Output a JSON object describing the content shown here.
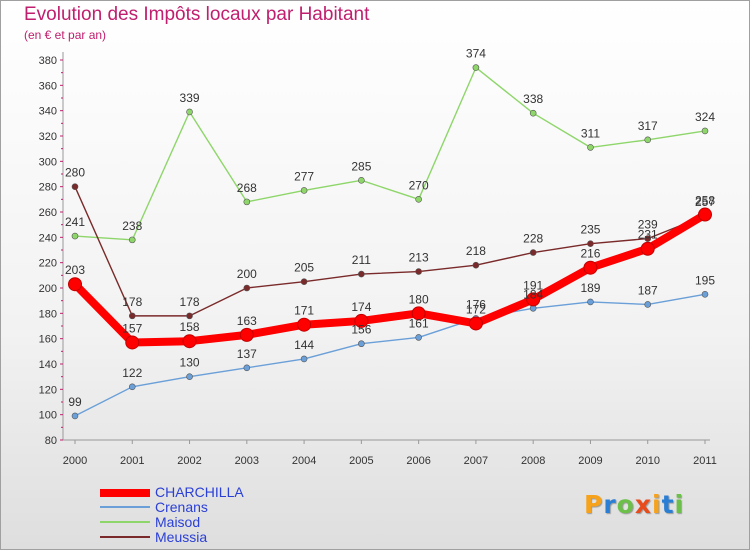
{
  "header": {
    "title": "Evolution des Impôts locaux par Habitant",
    "subtitle": "(en € et par an)"
  },
  "colors": {
    "title": "#c01e6e",
    "legend_text": "#2a3fd6",
    "CHARCHILLA": "#ff0000",
    "Crenans": "#6a9fd8",
    "Maisod": "#8ed66a",
    "Meussia": "#7a2a2a"
  },
  "logo": {
    "text": "Proxiti",
    "letters": [
      "P",
      "r",
      "o",
      "x",
      "i",
      "t",
      "i"
    ],
    "colors": [
      "#f7a21b",
      "#2a7fd4",
      "#6cc04a",
      "#e84c1c",
      "#f7a21b",
      "#2a7fd4",
      "#6cc04a"
    ]
  },
  "chart_data": {
    "type": "line",
    "title": "Evolution des Impôts locaux par Habitant",
    "subtitle": "(en € et par an)",
    "x": [
      "2000",
      "2001",
      "2002",
      "2003",
      "2004",
      "2005",
      "2006",
      "2007",
      "2008",
      "2009",
      "2010",
      "2011"
    ],
    "ylim": [
      80,
      380
    ],
    "yticks": [
      80,
      100,
      120,
      140,
      160,
      180,
      200,
      220,
      240,
      260,
      280,
      300,
      320,
      340,
      360,
      380
    ],
    "grid": false,
    "legend_position": "bottom-left",
    "series": [
      {
        "name": "CHARCHILLA",
        "values": [
          203,
          157,
          158,
          163,
          171,
          174,
          180,
          172,
          191,
          216,
          231,
          258
        ],
        "color": "#ff0000",
        "emphasis": "thick"
      },
      {
        "name": "Crenans",
        "values": [
          99,
          122,
          130,
          137,
          144,
          156,
          161,
          176,
          184,
          189,
          187,
          195
        ],
        "color": "#6a9fd8"
      },
      {
        "name": "Maisod",
        "values": [
          241,
          238,
          339,
          268,
          277,
          285,
          270,
          374,
          338,
          311,
          317,
          324
        ],
        "color": "#8ed66a"
      },
      {
        "name": "Meussia",
        "values": [
          280,
          178,
          178,
          200,
          205,
          211,
          213,
          218,
          228,
          235,
          239,
          257
        ],
        "color": "#7a2a2a"
      }
    ]
  }
}
